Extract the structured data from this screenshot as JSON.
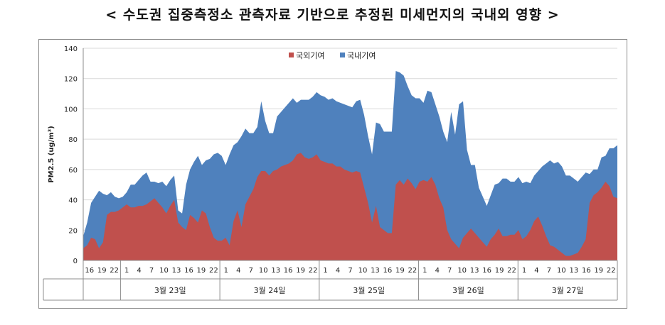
{
  "title": "< 수도권 집중측정소 관측자료 기반으로 추정된 미세먼지의 국내외 영향 >",
  "colors": {
    "foreign": "#c0504d",
    "domestic": "#4f81bd",
    "grid": "#d9d9d9",
    "axis": "#8c8c8c"
  },
  "chart_data": {
    "type": "area",
    "stacked": true,
    "title": "< 수도권 집중측정소 관측자료 기반으로 추정된 미세먼지의 국내외 영향 >",
    "ylabel": "PM2.5 (ug/m³)",
    "xlabel": "",
    "ylim": [
      0,
      140
    ],
    "yticks": [
      0,
      20,
      40,
      60,
      80,
      100,
      120,
      140
    ],
    "grid": true,
    "legend_position": "top-center",
    "x_tick_labels": [
      "16",
      "19",
      "22",
      "1",
      "4",
      "7",
      "10",
      "13",
      "16",
      "19",
      "22",
      "1",
      "4",
      "7",
      "10",
      "13",
      "16",
      "19",
      "22",
      "1",
      "4",
      "7",
      "10",
      "13",
      "16",
      "19",
      "22",
      "1",
      "4",
      "7",
      "10",
      "13",
      "16",
      "19",
      "22",
      "1",
      "4",
      "7",
      "10",
      "13",
      "16",
      "19",
      "22"
    ],
    "day_groups": [
      {
        "label": "",
        "hours": 3
      },
      {
        "label": "3월 23일",
        "hours": 8
      },
      {
        "label": "3월 24일",
        "hours": 8
      },
      {
        "label": "3월 25일",
        "hours": 8
      },
      {
        "label": "3월 26일",
        "hours": 8
      },
      {
        "label": "3월 27일",
        "hours": 8
      }
    ],
    "sample_step_hours": 1,
    "series": [
      {
        "name": "국외기여",
        "color": "#c0504d",
        "values": [
          8,
          10,
          15,
          14,
          8,
          12,
          30,
          32,
          32,
          33,
          35,
          37,
          35,
          35,
          36,
          36,
          37,
          39,
          41,
          38,
          35,
          31,
          36,
          40,
          25,
          22,
          20,
          30,
          28,
          25,
          33,
          31,
          22,
          15,
          13,
          13,
          15,
          10,
          26,
          33,
          22,
          37,
          42,
          47,
          55,
          59,
          59,
          56,
          59,
          60,
          62,
          63,
          64,
          66,
          70,
          71,
          68,
          67,
          68,
          70,
          66,
          65,
          64,
          64,
          62,
          62,
          60,
          59,
          58,
          59,
          58,
          48,
          38,
          25,
          36,
          22,
          20,
          18,
          18,
          50,
          53,
          50,
          54,
          51,
          47,
          52,
          53,
          52,
          55,
          50,
          41,
          35,
          20,
          14,
          11,
          8,
          15,
          18,
          21,
          18,
          15,
          12,
          9,
          14,
          17,
          21,
          16,
          16,
          17,
          17,
          20,
          14,
          16,
          20,
          26,
          29,
          23,
          16,
          10,
          9,
          7,
          5,
          3,
          3,
          4,
          5,
          9,
          14,
          38,
          43,
          45,
          48,
          52,
          49,
          42,
          41
        ]
      },
      {
        "name": "국내기여",
        "color": "#4f81bd",
        "values": [
          8,
          15,
          23,
          28,
          38,
          32,
          13,
          13,
          10,
          8,
          7,
          8,
          15,
          15,
          17,
          20,
          21,
          13,
          11,
          13,
          17,
          18,
          17,
          16,
          8,
          9,
          30,
          30,
          37,
          44,
          30,
          35,
          45,
          55,
          58,
          56,
          48,
          60,
          50,
          45,
          60,
          50,
          42,
          37,
          33,
          46,
          33,
          28,
          25,
          35,
          36,
          38,
          40,
          41,
          34,
          35,
          38,
          39,
          40,
          41,
          43,
          43,
          42,
          43,
          43,
          42,
          43,
          43,
          43,
          46,
          48,
          48,
          44,
          45,
          55,
          68,
          65,
          67,
          67,
          75,
          71,
          72,
          61,
          58,
          60,
          55,
          51,
          60,
          56,
          53,
          54,
          50,
          58,
          84,
          72,
          95,
          90,
          55,
          42,
          45,
          33,
          30,
          27,
          29,
          33,
          30,
          38,
          38,
          35,
          35,
          35,
          37,
          36,
          31,
          30,
          30,
          39,
          48,
          56,
          55,
          58,
          57,
          53,
          53,
          50,
          47,
          46,
          44,
          19,
          17,
          15,
          20,
          17,
          25,
          32,
          35
        ]
      }
    ]
  },
  "legend": [
    {
      "name": "국외기여",
      "color": "#c0504d"
    },
    {
      "name": "국내기여",
      "color": "#4f81bd"
    }
  ]
}
